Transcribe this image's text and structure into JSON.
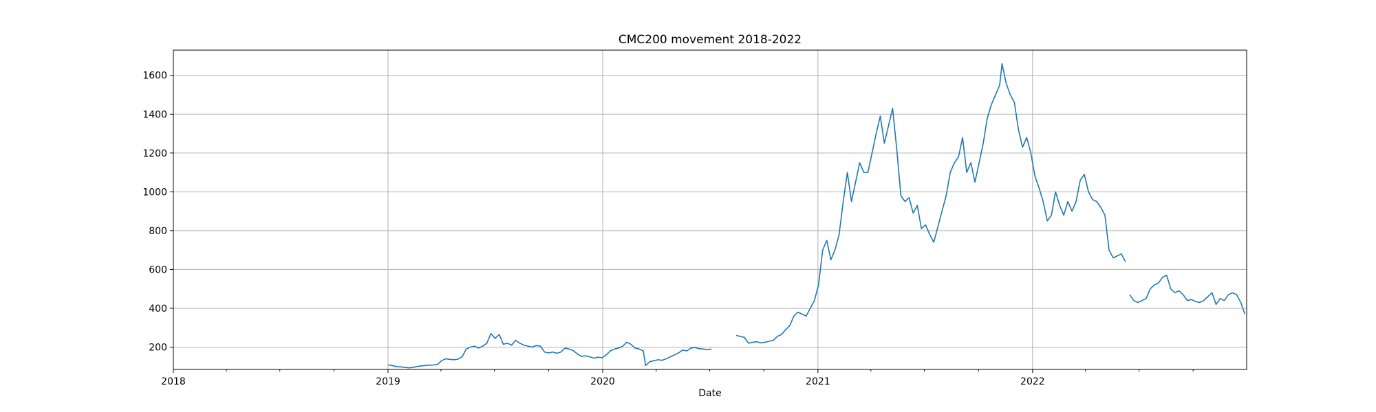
{
  "chart_data": {
    "type": "line",
    "title": "CMC200 movement 2018-2022",
    "xlabel": "Date",
    "ylabel": "",
    "x_axis": "date",
    "xlim": [
      "2018-01-01",
      "2022-12-31"
    ],
    "ylim": [
      85,
      1730
    ],
    "xticks": [
      "2018-01-01",
      "2019-01-01",
      "2020-01-01",
      "2021-01-01",
      "2022-01-01"
    ],
    "xtick_labels": [
      "2018",
      "2019",
      "2020",
      "2021",
      "2022"
    ],
    "yticks": [
      200,
      400,
      600,
      800,
      1000,
      1200,
      1400,
      1600
    ],
    "ytick_labels": [
      "200",
      "400",
      "600",
      "800",
      "1000",
      "1200",
      "1400",
      "1600"
    ],
    "grid": true,
    "line_color": "#1f77b4",
    "series": [
      {
        "segments": [
          [
            [
              "2019-01-01",
              108
            ],
            [
              "2019-01-08",
              105
            ],
            [
              "2019-01-15",
              100
            ],
            [
              "2019-01-22",
              98
            ],
            [
              "2019-01-29",
              96
            ],
            [
              "2019-02-05",
              93
            ],
            [
              "2019-02-12",
              95
            ],
            [
              "2019-02-19",
              100
            ],
            [
              "2019-02-26",
              103
            ],
            [
              "2019-03-05",
              105
            ],
            [
              "2019-03-12",
              107
            ],
            [
              "2019-03-19",
              108
            ],
            [
              "2019-03-26",
              110
            ],
            [
              "2019-04-02",
              130
            ],
            [
              "2019-04-09",
              140
            ],
            [
              "2019-04-16",
              137
            ],
            [
              "2019-04-23",
              135
            ],
            [
              "2019-04-30",
              138
            ],
            [
              "2019-05-07",
              150
            ],
            [
              "2019-05-14",
              190
            ],
            [
              "2019-05-21",
              200
            ],
            [
              "2019-05-28",
              205
            ],
            [
              "2019-06-04",
              195
            ],
            [
              "2019-06-11",
              205
            ],
            [
              "2019-06-18",
              220
            ],
            [
              "2019-06-25",
              270
            ],
            [
              "2019-07-02",
              245
            ],
            [
              "2019-07-09",
              265
            ],
            [
              "2019-07-16",
              215
            ],
            [
              "2019-07-23",
              220
            ],
            [
              "2019-07-30",
              210
            ],
            [
              "2019-08-06",
              235
            ],
            [
              "2019-08-13",
              220
            ],
            [
              "2019-08-20",
              210
            ],
            [
              "2019-08-27",
              205
            ],
            [
              "2019-09-03",
              200
            ],
            [
              "2019-09-10",
              208
            ],
            [
              "2019-09-17",
              205
            ],
            [
              "2019-09-24",
              175
            ],
            [
              "2019-10-01",
              170
            ],
            [
              "2019-10-08",
              175
            ],
            [
              "2019-10-15",
              168
            ],
            [
              "2019-10-22",
              175
            ],
            [
              "2019-10-29",
              195
            ],
            [
              "2019-11-05",
              190
            ],
            [
              "2019-11-12",
              182
            ],
            [
              "2019-11-19",
              165
            ],
            [
              "2019-11-26",
              152
            ],
            [
              "2019-12-03",
              155
            ],
            [
              "2019-12-10",
              150
            ],
            [
              "2019-12-17",
              143
            ],
            [
              "2019-12-24",
              148
            ],
            [
              "2019-12-31",
              145
            ],
            [
              "2020-01-07",
              160
            ],
            [
              "2020-01-14",
              180
            ],
            [
              "2020-01-21",
              190
            ],
            [
              "2020-01-28",
              195
            ],
            [
              "2020-02-04",
              205
            ],
            [
              "2020-02-11",
              225
            ],
            [
              "2020-02-18",
              215
            ],
            [
              "2020-02-25",
              195
            ],
            [
              "2020-03-03",
              190
            ],
            [
              "2020-03-10",
              180
            ],
            [
              "2020-03-14",
              105
            ],
            [
              "2020-03-21",
              125
            ],
            [
              "2020-03-28",
              130
            ],
            [
              "2020-04-04",
              135
            ],
            [
              "2020-04-11",
              132
            ],
            [
              "2020-04-18",
              140
            ],
            [
              "2020-04-25",
              150
            ],
            [
              "2020-05-02",
              160
            ],
            [
              "2020-05-09",
              170
            ],
            [
              "2020-05-16",
              185
            ],
            [
              "2020-05-23",
              180
            ],
            [
              "2020-05-30",
              195
            ],
            [
              "2020-06-06",
              198
            ],
            [
              "2020-06-13",
              192
            ],
            [
              "2020-06-20",
              190
            ],
            [
              "2020-06-27",
              187
            ],
            [
              "2020-07-04",
              190
            ]
          ],
          [
            [
              "2020-08-15",
              260
            ],
            [
              "2020-08-22",
              255
            ],
            [
              "2020-08-29",
              250
            ],
            [
              "2020-09-05",
              220
            ],
            [
              "2020-09-12",
              225
            ],
            [
              "2020-09-19",
              228
            ],
            [
              "2020-09-26",
              222
            ],
            [
              "2020-10-03",
              225
            ],
            [
              "2020-10-10",
              230
            ],
            [
              "2020-10-17",
              235
            ],
            [
              "2020-10-24",
              255
            ],
            [
              "2020-10-31",
              265
            ],
            [
              "2020-11-07",
              290
            ],
            [
              "2020-11-14",
              310
            ],
            [
              "2020-11-21",
              360
            ],
            [
              "2020-11-28",
              380
            ],
            [
              "2020-12-05",
              370
            ],
            [
              "2020-12-12",
              360
            ],
            [
              "2020-12-19",
              400
            ],
            [
              "2020-12-26",
              440
            ],
            [
              "2021-01-02",
              520
            ],
            [
              "2021-01-09",
              700
            ],
            [
              "2021-01-16",
              750
            ],
            [
              "2021-01-23",
              650
            ],
            [
              "2021-01-30",
              700
            ],
            [
              "2021-02-06",
              780
            ],
            [
              "2021-02-13",
              950
            ],
            [
              "2021-02-20",
              1100
            ],
            [
              "2021-02-27",
              950
            ],
            [
              "2021-03-06",
              1050
            ],
            [
              "2021-03-13",
              1150
            ],
            [
              "2021-03-20",
              1100
            ],
            [
              "2021-03-27",
              1100
            ],
            [
              "2021-04-03",
              1200
            ],
            [
              "2021-04-10",
              1300
            ],
            [
              "2021-04-17",
              1390
            ],
            [
              "2021-04-24",
              1250
            ],
            [
              "2021-05-01",
              1340
            ],
            [
              "2021-05-08",
              1430
            ],
            [
              "2021-05-15",
              1220
            ],
            [
              "2021-05-22",
              980
            ],
            [
              "2021-05-29",
              950
            ],
            [
              "2021-06-05",
              970
            ],
            [
              "2021-06-12",
              890
            ],
            [
              "2021-06-19",
              930
            ],
            [
              "2021-06-26",
              810
            ],
            [
              "2021-07-03",
              830
            ],
            [
              "2021-07-10",
              780
            ],
            [
              "2021-07-17",
              740
            ],
            [
              "2021-07-24",
              820
            ],
            [
              "2021-07-31",
              900
            ],
            [
              "2021-08-07",
              980
            ],
            [
              "2021-08-14",
              1100
            ],
            [
              "2021-08-21",
              1150
            ],
            [
              "2021-08-28",
              1180
            ],
            [
              "2021-09-04",
              1280
            ],
            [
              "2021-09-11",
              1100
            ],
            [
              "2021-09-18",
              1150
            ],
            [
              "2021-09-25",
              1050
            ],
            [
              "2021-10-02",
              1150
            ],
            [
              "2021-10-09",
              1250
            ],
            [
              "2021-10-16",
              1380
            ],
            [
              "2021-10-23",
              1450
            ],
            [
              "2021-10-30",
              1500
            ],
            [
              "2021-11-06",
              1550
            ],
            [
              "2021-11-10",
              1660
            ],
            [
              "2021-11-17",
              1560
            ],
            [
              "2021-11-24",
              1500
            ],
            [
              "2021-12-01",
              1460
            ],
            [
              "2021-12-08",
              1320
            ],
            [
              "2021-12-15",
              1230
            ],
            [
              "2021-12-22",
              1280
            ],
            [
              "2021-12-29",
              1200
            ],
            [
              "2022-01-05",
              1080
            ],
            [
              "2022-01-12",
              1020
            ],
            [
              "2022-01-19",
              950
            ],
            [
              "2022-01-26",
              850
            ],
            [
              "2022-02-02",
              880
            ],
            [
              "2022-02-09",
              1000
            ],
            [
              "2022-02-16",
              930
            ],
            [
              "2022-02-23",
              880
            ],
            [
              "2022-03-02",
              950
            ],
            [
              "2022-03-09",
              900
            ],
            [
              "2022-03-16",
              950
            ],
            [
              "2022-03-23",
              1060
            ],
            [
              "2022-03-30",
              1090
            ],
            [
              "2022-04-06",
              1000
            ],
            [
              "2022-04-13",
              960
            ],
            [
              "2022-04-20",
              950
            ],
            [
              "2022-04-27",
              920
            ],
            [
              "2022-05-04",
              880
            ],
            [
              "2022-05-11",
              700
            ],
            [
              "2022-05-18",
              660
            ],
            [
              "2022-05-25",
              670
            ],
            [
              "2022-06-01",
              680
            ],
            [
              "2022-06-08",
              640
            ]
          ],
          [
            [
              "2022-06-15",
              470
            ],
            [
              "2022-06-22",
              440
            ],
            [
              "2022-06-29",
              430
            ],
            [
              "2022-07-06",
              440
            ],
            [
              "2022-07-13",
              450
            ],
            [
              "2022-07-20",
              500
            ],
            [
              "2022-07-27",
              520
            ],
            [
              "2022-08-03",
              530
            ],
            [
              "2022-08-10",
              560
            ],
            [
              "2022-08-17",
              570
            ],
            [
              "2022-08-24",
              500
            ],
            [
              "2022-08-31",
              480
            ],
            [
              "2022-09-07",
              490
            ],
            [
              "2022-09-14",
              470
            ],
            [
              "2022-09-21",
              440
            ],
            [
              "2022-09-28",
              445
            ],
            [
              "2022-10-05",
              435
            ],
            [
              "2022-10-12",
              430
            ],
            [
              "2022-10-19",
              440
            ],
            [
              "2022-10-26",
              460
            ],
            [
              "2022-11-02",
              480
            ],
            [
              "2022-11-09",
              420
            ],
            [
              "2022-11-16",
              450
            ],
            [
              "2022-11-23",
              440
            ],
            [
              "2022-11-30",
              470
            ],
            [
              "2022-12-07",
              480
            ],
            [
              "2022-12-14",
              470
            ],
            [
              "2022-12-21",
              430
            ],
            [
              "2022-12-28",
              370
            ]
          ]
        ]
      }
    ]
  }
}
